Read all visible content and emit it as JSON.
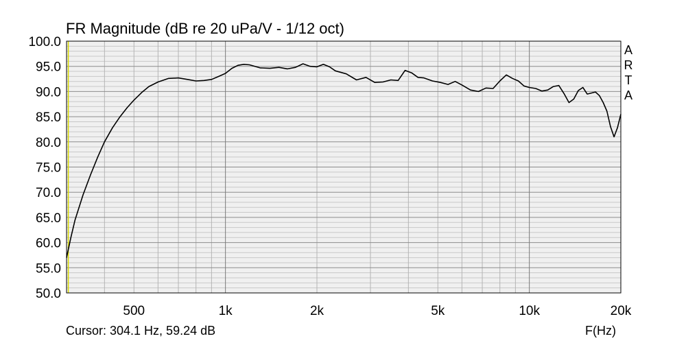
{
  "chart_data": {
    "type": "line",
    "title": "FR Magnitude (dB re 20 uPa/V - 1/12 oct)",
    "xlabel": "F(Hz)",
    "ylabel": "",
    "xscale": "log",
    "xlim": [
      300,
      20000
    ],
    "ylim": [
      50,
      100
    ],
    "grid": true,
    "cursor_line_x": 304.1,
    "y_ticks": [
      {
        "value": 100,
        "label": "100.0"
      },
      {
        "value": 95,
        "label": "95.0"
      },
      {
        "value": 90,
        "label": "90.0"
      },
      {
        "value": 85,
        "label": "85.0"
      },
      {
        "value": 80,
        "label": "80.0"
      },
      {
        "value": 75,
        "label": "75.0"
      },
      {
        "value": 70,
        "label": "70.0"
      },
      {
        "value": 65,
        "label": "65.0"
      },
      {
        "value": 60,
        "label": "60.0"
      },
      {
        "value": 55,
        "label": "55.0"
      },
      {
        "value": 50,
        "label": "50.0"
      }
    ],
    "x_ticks": [
      {
        "value": 500,
        "label": "500"
      },
      {
        "value": 1000,
        "label": "1k"
      },
      {
        "value": 2000,
        "label": "2k"
      },
      {
        "value": 5000,
        "label": "5k"
      },
      {
        "value": 10000,
        "label": "10k"
      },
      {
        "value": 20000,
        "label": "20k"
      }
    ],
    "series": [
      {
        "color": "#000000",
        "x": [
          300,
          310,
          320,
          340,
          360,
          380,
          400,
          425,
          450,
          475,
          500,
          530,
          560,
          600,
          650,
          700,
          750,
          800,
          850,
          900,
          950,
          1000,
          1050,
          1100,
          1150,
          1200,
          1300,
          1400,
          1500,
          1600,
          1700,
          1800,
          1900,
          2000,
          2100,
          2200,
          2300,
          2500,
          2700,
          2900,
          3100,
          3300,
          3500,
          3700,
          3900,
          4100,
          4300,
          4500,
          4800,
          5100,
          5400,
          5700,
          6000,
          6400,
          6800,
          7200,
          7600,
          8000,
          8400,
          8800,
          9200,
          9600,
          10000,
          10500,
          11000,
          11500,
          12000,
          12500,
          13000,
          13500,
          14000,
          14500,
          15000,
          15500,
          16000,
          16500,
          17000,
          17500,
          18000,
          18500,
          19000,
          19500,
          20000
        ],
        "y": [
          57.0,
          61.0,
          64.5,
          69.5,
          73.5,
          77.0,
          80.0,
          82.8,
          85.0,
          86.8,
          88.3,
          89.8,
          91.0,
          91.9,
          92.6,
          92.7,
          92.4,
          92.1,
          92.2,
          92.4,
          93.0,
          93.6,
          94.6,
          95.2,
          95.4,
          95.3,
          94.7,
          94.6,
          94.8,
          94.5,
          94.8,
          95.5,
          95.0,
          94.9,
          95.4,
          94.9,
          94.1,
          93.5,
          92.3,
          92.8,
          91.8,
          91.9,
          92.3,
          92.2,
          94.2,
          93.7,
          92.8,
          92.7,
          92.1,
          91.8,
          91.4,
          92.0,
          91.3,
          90.3,
          90.0,
          90.7,
          90.6,
          92.1,
          93.3,
          92.6,
          92.1,
          91.1,
          90.8,
          90.6,
          90.1,
          90.3,
          91.0,
          91.2,
          89.6,
          87.8,
          88.5,
          90.2,
          90.8,
          89.5,
          89.7,
          89.9,
          89.2,
          87.8,
          86.1,
          83.0,
          81.0,
          82.8,
          85.5
        ]
      }
    ]
  },
  "brand_letters": [
    "A",
    "R",
    "T",
    "A"
  ],
  "footer": {
    "cursor_readout": "Cursor: 304.1 Hz, 59.24 dB",
    "x_axis_label": "F(Hz)"
  }
}
